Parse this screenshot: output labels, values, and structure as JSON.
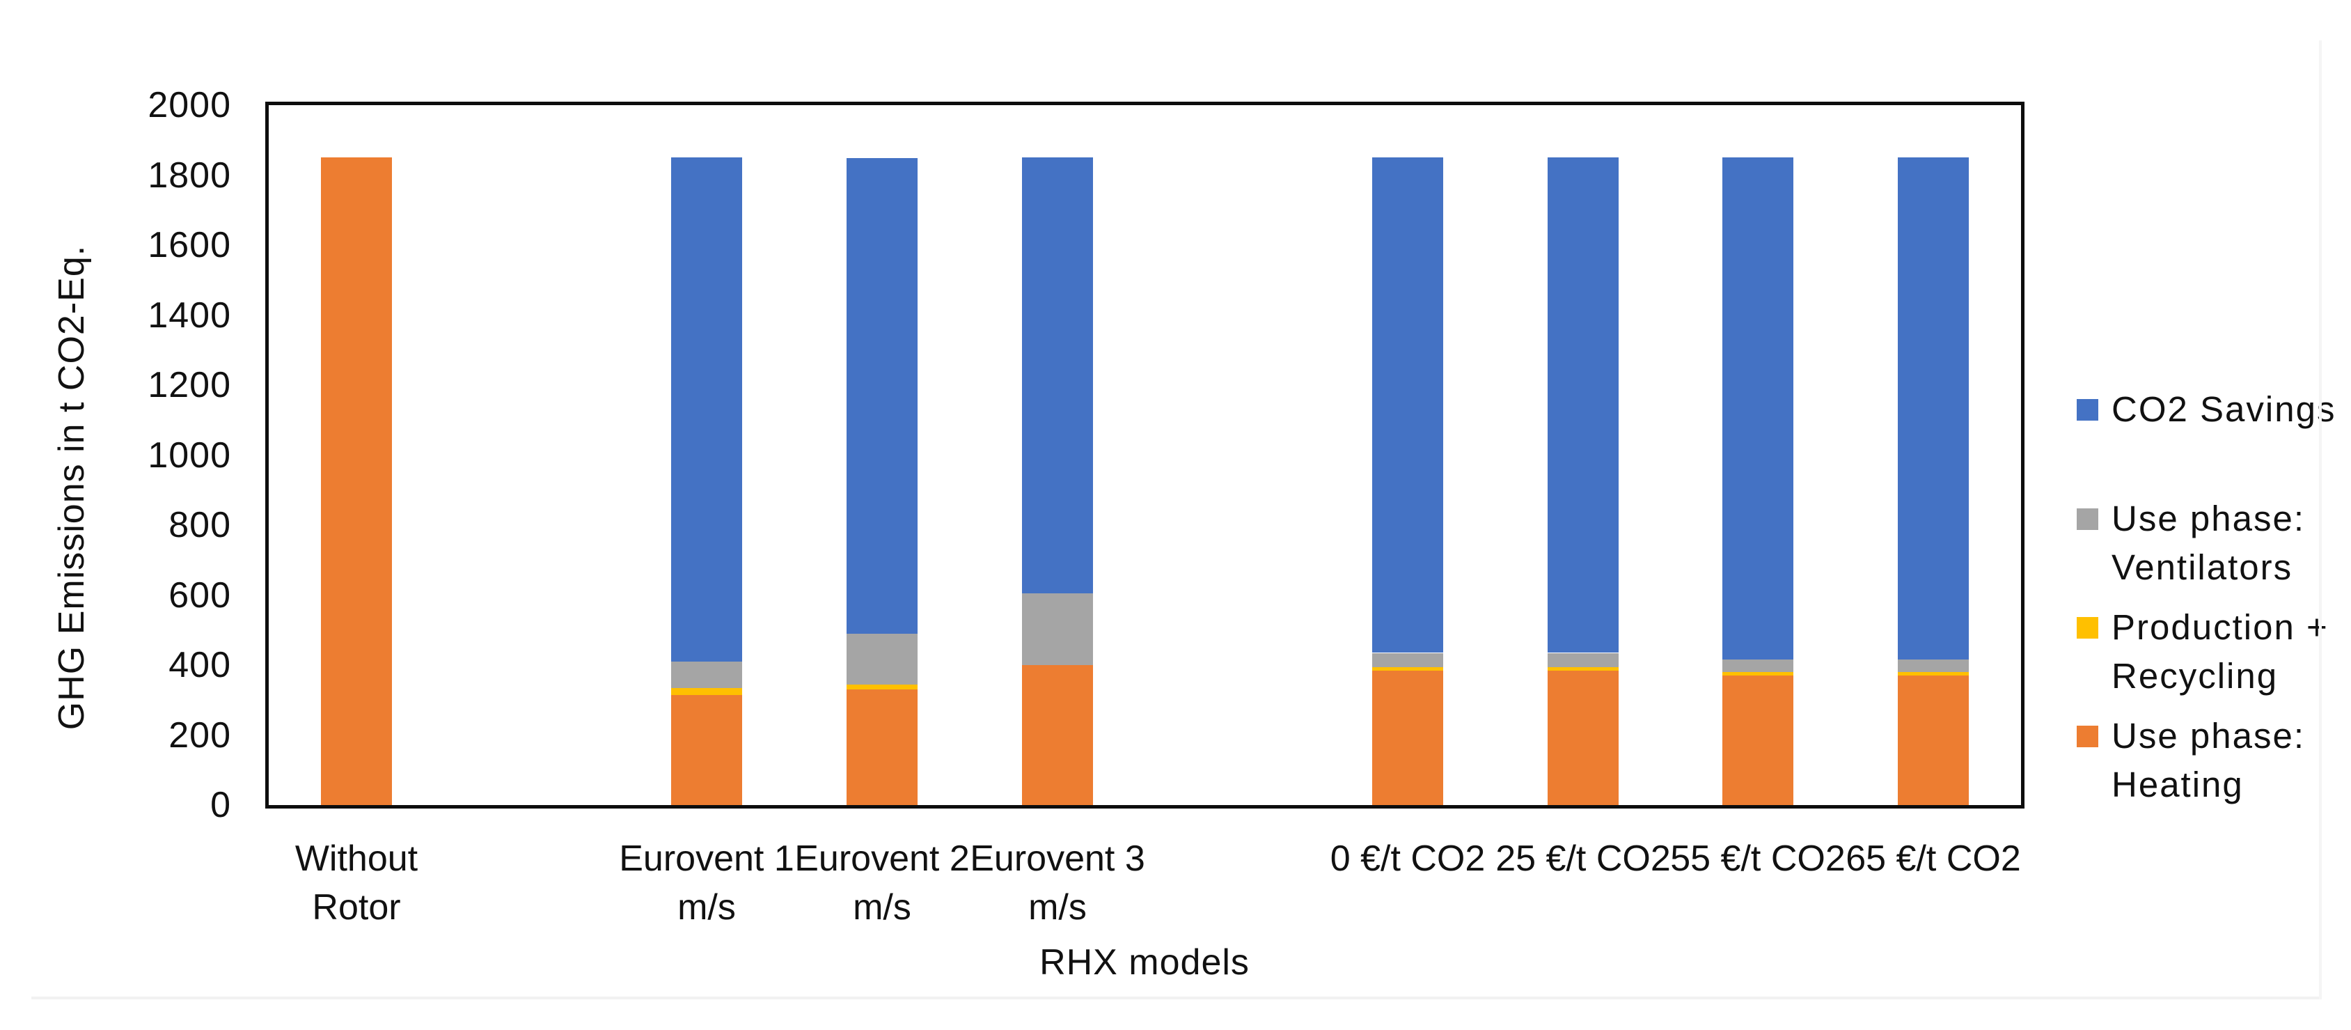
{
  "page": {
    "background": "#ffffff",
    "edge_color": "#f2f2f2"
  },
  "chart_data": {
    "type": "bar",
    "stacked": true,
    "title": "",
    "xlabel": "RHX models",
    "ylabel": "GHG Emissions in t CO2-Eq.",
    "ylim": [
      0,
      2000
    ],
    "yticks": [
      0,
      200,
      400,
      600,
      800,
      1000,
      1200,
      1400,
      1600,
      1800,
      2000
    ],
    "grid": false,
    "legend_position": "right",
    "categories": [
      {
        "lines": [
          "Without",
          "Rotor"
        ]
      },
      {
        "lines": []
      },
      {
        "lines": [
          "Eurovent 1",
          "m/s"
        ]
      },
      {
        "lines": [
          "Eurovent 2",
          "m/s"
        ]
      },
      {
        "lines": [
          "Eurovent 3",
          "m/s"
        ]
      },
      {
        "lines": []
      },
      {
        "lines": [
          "0 €/t CO2"
        ]
      },
      {
        "lines": [
          "25 €/t CO2"
        ]
      },
      {
        "lines": [
          "55 €/t CO2"
        ]
      },
      {
        "lines": [
          "65 €/t CO2"
        ]
      }
    ],
    "series": [
      {
        "name": "Use phase: Heating",
        "color": "#ED7D31",
        "values": [
          1850,
          0,
          315,
          330,
          400,
          0,
          385,
          385,
          370,
          370
        ]
      },
      {
        "name": "Production + Recycling",
        "color": "#FFC000",
        "values": [
          0,
          0,
          20,
          15,
          0,
          0,
          10,
          10,
          10,
          10
        ]
      },
      {
        "name": "Use phase: Ventilators",
        "color": "#A5A5A5",
        "values": [
          0,
          0,
          75,
          145,
          205,
          0,
          40,
          40,
          35,
          35
        ]
      },
      {
        "name": "CO2 Savings",
        "color": "#4472C4",
        "values": [
          0,
          0,
          1440,
          1360,
          1245,
          0,
          1415,
          1415,
          1435,
          1435
        ]
      }
    ],
    "legend": [
      {
        "color": "#4472C4",
        "lines": [
          "CO2 Savings"
        ]
      },
      {
        "color": "#A5A5A5",
        "lines": [
          "Use phase:",
          "Ventilators"
        ]
      },
      {
        "color": "#FFC000",
        "lines": [
          "Production +",
          "Recycling"
        ]
      },
      {
        "color": "#ED7D31",
        "lines": [
          "Use phase:",
          "Heating"
        ]
      }
    ]
  }
}
